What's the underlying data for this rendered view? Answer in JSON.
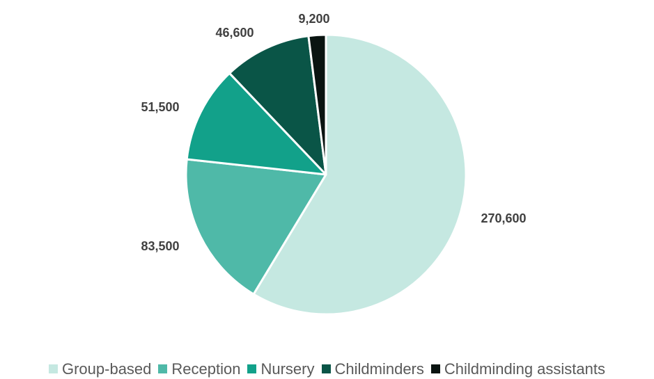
{
  "chart_data": {
    "type": "pie",
    "categories": [
      "Group-based",
      "Reception",
      "Nursery",
      "Childminders",
      "Childminding assistants"
    ],
    "values": [
      270600,
      83500,
      51500,
      46600,
      9200
    ],
    "labels": [
      "270,600",
      "83,500",
      "51,500",
      "46,600",
      "9,200"
    ],
    "colors": [
      "#c5e8e1",
      "#4fb9a8",
      "#12a18a",
      "#0a5547",
      "#0a1411"
    ],
    "legend": "bottom",
    "start_angle": "12 o'clock",
    "direction": "clockwise"
  }
}
